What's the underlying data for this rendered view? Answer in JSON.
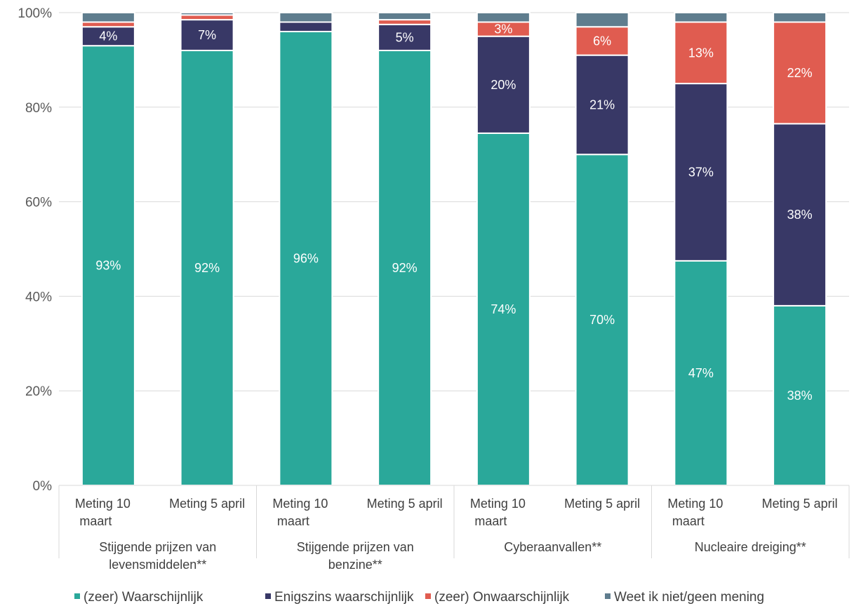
{
  "chart_data": {
    "type": "bar",
    "stacked": true,
    "percent_stacked": true,
    "groups": [
      {
        "label": "Stijgende prijzen van levensmiddelen**",
        "lines": [
          "Stijgende prijzen van",
          "levensmiddelen**"
        ]
      },
      {
        "label": "Stijgende prijzen van benzine**",
        "lines": [
          "Stijgende prijzen van",
          "benzine**"
        ]
      },
      {
        "label": "Cyberaanvallen**",
        "lines": [
          "Cyberaanvallen**"
        ]
      },
      {
        "label": "Nucleaire dreiging**",
        "lines": [
          "Nucleaire dreiging**"
        ]
      }
    ],
    "categories": [
      {
        "label": "Meting 10 maart",
        "lines": [
          "Meting 10",
          "maart"
        ],
        "group": 0
      },
      {
        "label": "Meting 5 april",
        "lines": [
          "Meting 5 april"
        ],
        "group": 0
      },
      {
        "label": "Meting 10 maart",
        "lines": [
          "Meting 10",
          "maart"
        ],
        "group": 1
      },
      {
        "label": "Meting 5 april",
        "lines": [
          "Meting 5 april"
        ],
        "group": 1
      },
      {
        "label": "Meting 10 maart",
        "lines": [
          "Meting 10",
          "maart"
        ],
        "group": 2
      },
      {
        "label": "Meting 5 april",
        "lines": [
          "Meting 5 april"
        ],
        "group": 2
      },
      {
        "label": "Meting 10 maart",
        "lines": [
          "Meting 10",
          "maart"
        ],
        "group": 3
      },
      {
        "label": "Meting 5 april",
        "lines": [
          "Meting 5 april"
        ],
        "group": 3
      }
    ],
    "series": [
      {
        "name": "(zeer) Waarschijnlijk",
        "color": "#2aa89a",
        "values": [
          93,
          92,
          96,
          92,
          74.5,
          70,
          47.5,
          38
        ],
        "labels": [
          "93%",
          "92%",
          "96%",
          "92%",
          "74%",
          "70%",
          "47%",
          "38%"
        ]
      },
      {
        "name": "Enigszins waarschijnlijk",
        "color": "#383866",
        "values": [
          4,
          6.5,
          2,
          5.5,
          20.5,
          21,
          37.5,
          38.5
        ],
        "labels": [
          "4%",
          "7%",
          "",
          "5%",
          "20%",
          "21%",
          "37%",
          "38%"
        ]
      },
      {
        "name": "(zeer) Onwaarschijnlijk",
        "color": "#e05c50",
        "values": [
          1,
          1,
          0,
          1,
          3,
          6,
          13,
          21.5
        ],
        "labels": [
          "",
          "",
          "",
          "",
          "3%",
          "6%",
          "13%",
          "22%"
        ]
      },
      {
        "name": "Weet ik niet/geen mening",
        "color": "#5f7d8e",
        "values": [
          2,
          0.5,
          2,
          1.5,
          2,
          3,
          2,
          2
        ],
        "labels": [
          "",
          "",
          "",
          "",
          "",
          "",
          "",
          ""
        ]
      }
    ],
    "y_ticks": [
      "0%",
      "20%",
      "40%",
      "60%",
      "80%",
      "100%"
    ],
    "ylim": [
      0,
      100
    ],
    "grid": true,
    "legend_position": "bottom"
  }
}
